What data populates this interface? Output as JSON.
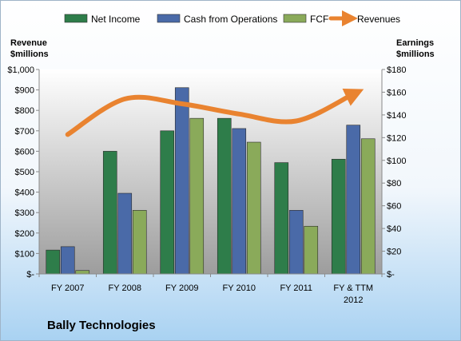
{
  "chart_data": {
    "type": "bar",
    "title": "Bally Technologies",
    "left_axis_label": [
      "Revenue",
      "$millions"
    ],
    "right_axis_label": [
      "Earnings",
      "$millions"
    ],
    "categories": [
      "FY 2007",
      "FY 2008",
      "FY 2009",
      "FY 2010",
      "FY 2011",
      "FY & TTM 2012"
    ],
    "category_labels": [
      [
        "FY 2007"
      ],
      [
        "FY 2008"
      ],
      [
        "FY 2009"
      ],
      [
        "FY 2010"
      ],
      [
        "FY 2011"
      ],
      [
        "FY & TTM",
        "2012"
      ]
    ],
    "left_ylim": [
      0,
      1000
    ],
    "left_ticks": [
      0,
      100,
      200,
      300,
      400,
      500,
      600,
      700,
      800,
      900,
      1000
    ],
    "left_tick_labels": [
      "$-",
      "$100",
      "$200",
      "$300",
      "$400",
      "$500",
      "$600",
      "$700",
      "$800",
      "$900",
      "$1,000"
    ],
    "right_ylim": [
      0,
      180
    ],
    "right_ticks": [
      0,
      20,
      40,
      60,
      80,
      100,
      120,
      140,
      160,
      180
    ],
    "right_tick_labels": [
      "$-",
      "$20",
      "$40",
      "$60",
      "$80",
      "$100",
      "$120",
      "$140",
      "$160",
      "$180"
    ],
    "series": [
      {
        "name": "Net Income",
        "type": "bar",
        "axis": "right",
        "color": "#2e7d4a",
        "values": [
          21,
          108,
          126,
          137,
          98,
          101
        ]
      },
      {
        "name": "Cash from Operations",
        "type": "bar",
        "axis": "right",
        "color": "#4a6aa8",
        "values": [
          24,
          71,
          164,
          128,
          56,
          131
        ]
      },
      {
        "name": "FCF",
        "type": "bar",
        "axis": "right",
        "color": "#8aaa5a",
        "values": [
          3,
          56,
          137,
          116,
          42,
          119
        ]
      },
      {
        "name": "Revenues",
        "type": "line",
        "axis": "left",
        "color": "#e98330",
        "values": [
          682,
          856,
          832,
          782,
          748,
          880
        ]
      }
    ],
    "legend_position": "top",
    "grid": false
  }
}
